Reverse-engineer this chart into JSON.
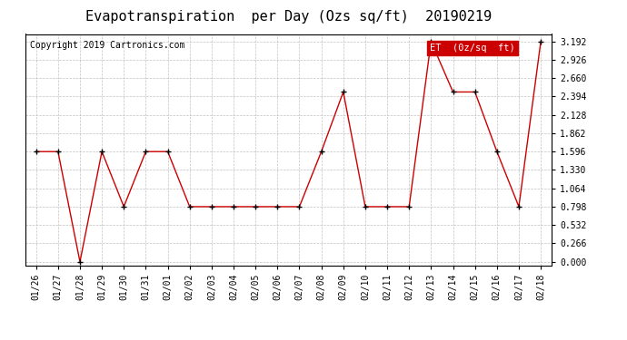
{
  "title": "Evapotranspiration  per Day (Ozs sq/ft)  20190219",
  "copyright": "Copyright 2019 Cartronics.com",
  "legend_label": "ET  (0z/sq  ft)",
  "dates": [
    "01/26",
    "01/27",
    "01/28",
    "01/29",
    "01/30",
    "01/31",
    "02/01",
    "02/02",
    "02/03",
    "02/04",
    "02/05",
    "02/06",
    "02/07",
    "02/08",
    "02/09",
    "02/10",
    "02/11",
    "02/12",
    "02/13",
    "02/14",
    "02/15",
    "02/16",
    "02/17",
    "02/18"
  ],
  "values": [
    1.596,
    1.596,
    0.0,
    1.596,
    0.798,
    1.596,
    1.596,
    0.798,
    0.798,
    0.798,
    0.798,
    0.798,
    0.798,
    1.596,
    2.46,
    0.798,
    0.798,
    0.798,
    3.192,
    2.46,
    2.46,
    1.596,
    0.798,
    3.192
  ],
  "ylim": [
    -0.05,
    3.3
  ],
  "yticks": [
    0.0,
    0.266,
    0.532,
    0.798,
    1.064,
    1.33,
    1.596,
    1.862,
    2.128,
    2.394,
    2.66,
    2.926,
    3.192
  ],
  "line_color": "#cc0000",
  "marker_color": "#000000",
  "background_color": "#ffffff",
  "grid_color": "#bbbbbb",
  "title_fontsize": 11,
  "copyright_fontsize": 7,
  "tick_fontsize": 7,
  "legend_bg_color": "#cc0000",
  "legend_text_color": "#ffffff"
}
